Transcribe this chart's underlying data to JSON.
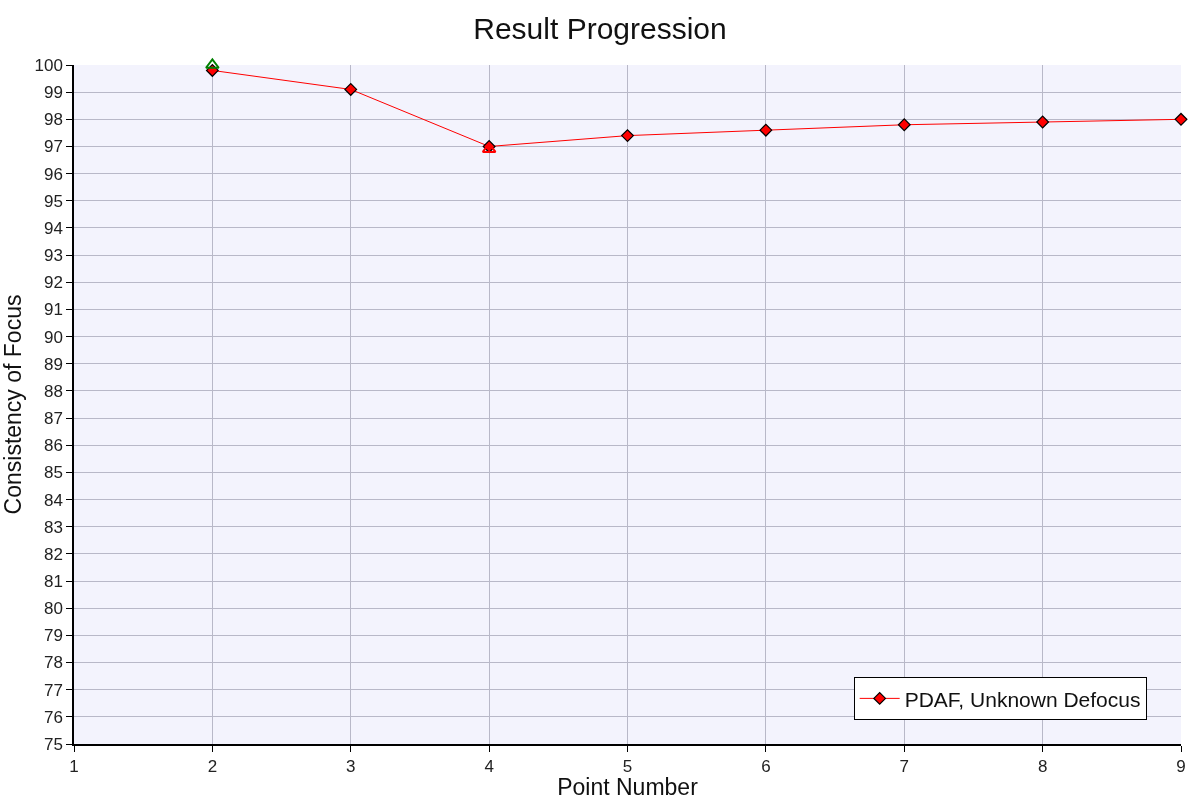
{
  "chart_data": {
    "type": "line",
    "title": "Result Progression",
    "xlabel": "Point Number",
    "ylabel": "Consistency of Focus",
    "x": [
      2,
      3,
      4,
      5,
      6,
      7,
      8,
      9
    ],
    "series": [
      {
        "name": "PDAF, Unknown Defocus",
        "color": "#ff0000",
        "marker": "diamond",
        "values": [
          99.8,
          99.1,
          97.0,
          97.4,
          97.6,
          97.8,
          97.9,
          98.0
        ]
      },
      {
        "type": "scatter",
        "color": "#008000",
        "marker": "triangle",
        "x": [
          2
        ],
        "values": [
          100.0
        ]
      },
      {
        "type": "scatter",
        "color": "#ff0000",
        "marker": "triangle",
        "x": [
          4
        ],
        "values": [
          96.9
        ]
      }
    ],
    "xlim": [
      1,
      9
    ],
    "xticks": [
      1,
      2,
      3,
      4,
      5,
      6,
      7,
      8,
      9
    ],
    "ylim": [
      75,
      100
    ],
    "yticks": [
      75,
      76,
      77,
      78,
      79,
      80,
      81,
      82,
      83,
      84,
      85,
      86,
      87,
      88,
      89,
      90,
      91,
      92,
      93,
      94,
      95,
      96,
      97,
      98,
      99,
      100
    ],
    "grid": true,
    "legend": "bottom right",
    "line_style": "solid"
  }
}
